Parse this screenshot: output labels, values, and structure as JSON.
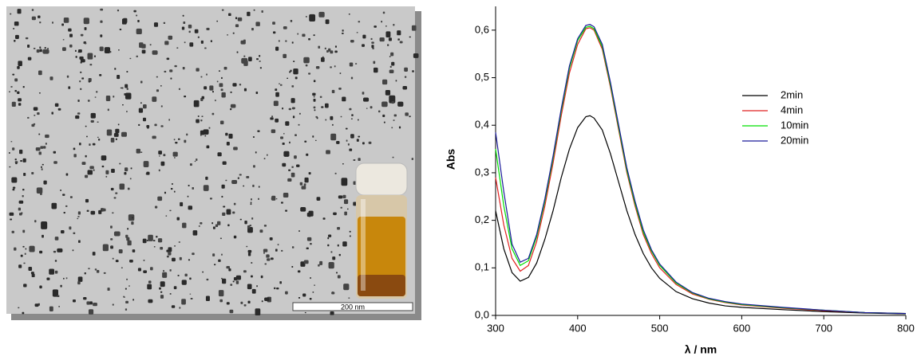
{
  "image": {
    "scale_bar_label": "200 nm"
  },
  "chart_data": {
    "type": "line",
    "xlabel": "λ / nm",
    "ylabel": "Abs",
    "x": [
      300,
      310,
      320,
      330,
      340,
      350,
      360,
      370,
      380,
      390,
      400,
      410,
      415,
      420,
      430,
      440,
      450,
      460,
      470,
      480,
      490,
      500,
      520,
      540,
      560,
      580,
      600,
      650,
      700,
      750,
      800
    ],
    "series": [
      {
        "name": "2min",
        "color": "#000000",
        "values": [
          0.22,
          0.14,
          0.09,
          0.072,
          0.08,
          0.11,
          0.16,
          0.22,
          0.29,
          0.35,
          0.395,
          0.418,
          0.42,
          0.415,
          0.39,
          0.34,
          0.28,
          0.22,
          0.17,
          0.13,
          0.1,
          0.078,
          0.05,
          0.035,
          0.026,
          0.02,
          0.017,
          0.012,
          0.008,
          0.005,
          0.003
        ]
      },
      {
        "name": "4min",
        "color": "#e02020",
        "values": [
          0.29,
          0.19,
          0.12,
          0.093,
          0.105,
          0.155,
          0.23,
          0.32,
          0.42,
          0.51,
          0.57,
          0.603,
          0.605,
          0.6,
          0.56,
          0.48,
          0.39,
          0.3,
          0.23,
          0.17,
          0.13,
          0.1,
          0.065,
          0.045,
          0.034,
          0.027,
          0.022,
          0.015,
          0.01,
          0.006,
          0.004
        ]
      },
      {
        "name": "10min",
        "color": "#00e000",
        "values": [
          0.35,
          0.23,
          0.14,
          0.105,
          0.115,
          0.165,
          0.24,
          0.33,
          0.43,
          0.52,
          0.578,
          0.606,
          0.608,
          0.603,
          0.565,
          0.485,
          0.395,
          0.305,
          0.235,
          0.175,
          0.135,
          0.105,
          0.068,
          0.047,
          0.035,
          0.028,
          0.023,
          0.016,
          0.011,
          0.006,
          0.004
        ]
      },
      {
        "name": "20min",
        "color": "#1a1a9a",
        "values": [
          0.385,
          0.26,
          0.15,
          0.112,
          0.12,
          0.17,
          0.245,
          0.335,
          0.435,
          0.525,
          0.582,
          0.61,
          0.612,
          0.607,
          0.57,
          0.49,
          0.4,
          0.31,
          0.24,
          0.18,
          0.138,
          0.108,
          0.07,
          0.048,
          0.036,
          0.029,
          0.024,
          0.017,
          0.011,
          0.006,
          0.004
        ]
      }
    ],
    "xlim": [
      300,
      800
    ],
    "xticks": [
      300,
      400,
      500,
      600,
      700,
      800
    ],
    "ylim": [
      0,
      0.65
    ],
    "yticks": [
      {
        "value": 0,
        "label": "0,0"
      },
      {
        "value": 0.1,
        "label": "0,1"
      },
      {
        "value": 0.2,
        "label": "0,2"
      },
      {
        "value": 0.3,
        "label": "0,3"
      },
      {
        "value": 0.4,
        "label": "0,4"
      },
      {
        "value": 0.5,
        "label": "0,5"
      },
      {
        "value": 0.6,
        "label": "0,6"
      }
    ],
    "legend": "upper right"
  }
}
